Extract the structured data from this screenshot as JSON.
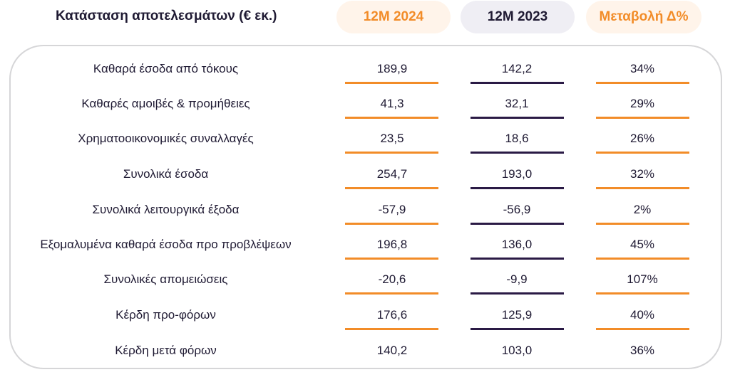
{
  "table": {
    "title": "Κατάσταση αποτελεσμάτων (€ εκ.)",
    "columns": {
      "current": "12Μ 2024",
      "previous": "12Μ 2023",
      "change": "Μεταβολή Δ%"
    },
    "rows": [
      {
        "label": "Καθαρά έσοδα από τόκους",
        "current": "189,9",
        "previous": "142,2",
        "change": "34%"
      },
      {
        "label": "Καθαρές αμοιβές & προμήθειες",
        "current": "41,3",
        "previous": "32,1",
        "change": "29%"
      },
      {
        "label": "Χρηματοοικονομικές συναλλαγές",
        "current": "23,5",
        "previous": "18,6",
        "change": "26%"
      },
      {
        "label": "Συνολικά έσοδα",
        "current": "254,7",
        "previous": "193,0",
        "change": "32%"
      },
      {
        "label": "Συνολικά λειτουργικά έξοδα",
        "current": "-57,9",
        "previous": "-56,9",
        "change": "2%"
      },
      {
        "label": "Εξομαλυμένα καθαρά έσοδα προ προβλέψεων",
        "current": "196,8",
        "previous": "136,0",
        "change": "45%"
      },
      {
        "label": "Συνολικές απομειώσεις",
        "current": "-20,6",
        "previous": "-9,9",
        "change": "107%"
      },
      {
        "label": "Κέρδη προ-φόρων",
        "current": "176,6",
        "previous": "125,9",
        "change": "40%"
      },
      {
        "label": "Κέρδη μετά φόρων",
        "current": "140,2",
        "previous": "103,0",
        "change": "36%"
      }
    ]
  },
  "colors": {
    "accent_orange": "#f28c28",
    "dark_purple": "#2a1a45",
    "border_gray": "#d6d6d8"
  }
}
